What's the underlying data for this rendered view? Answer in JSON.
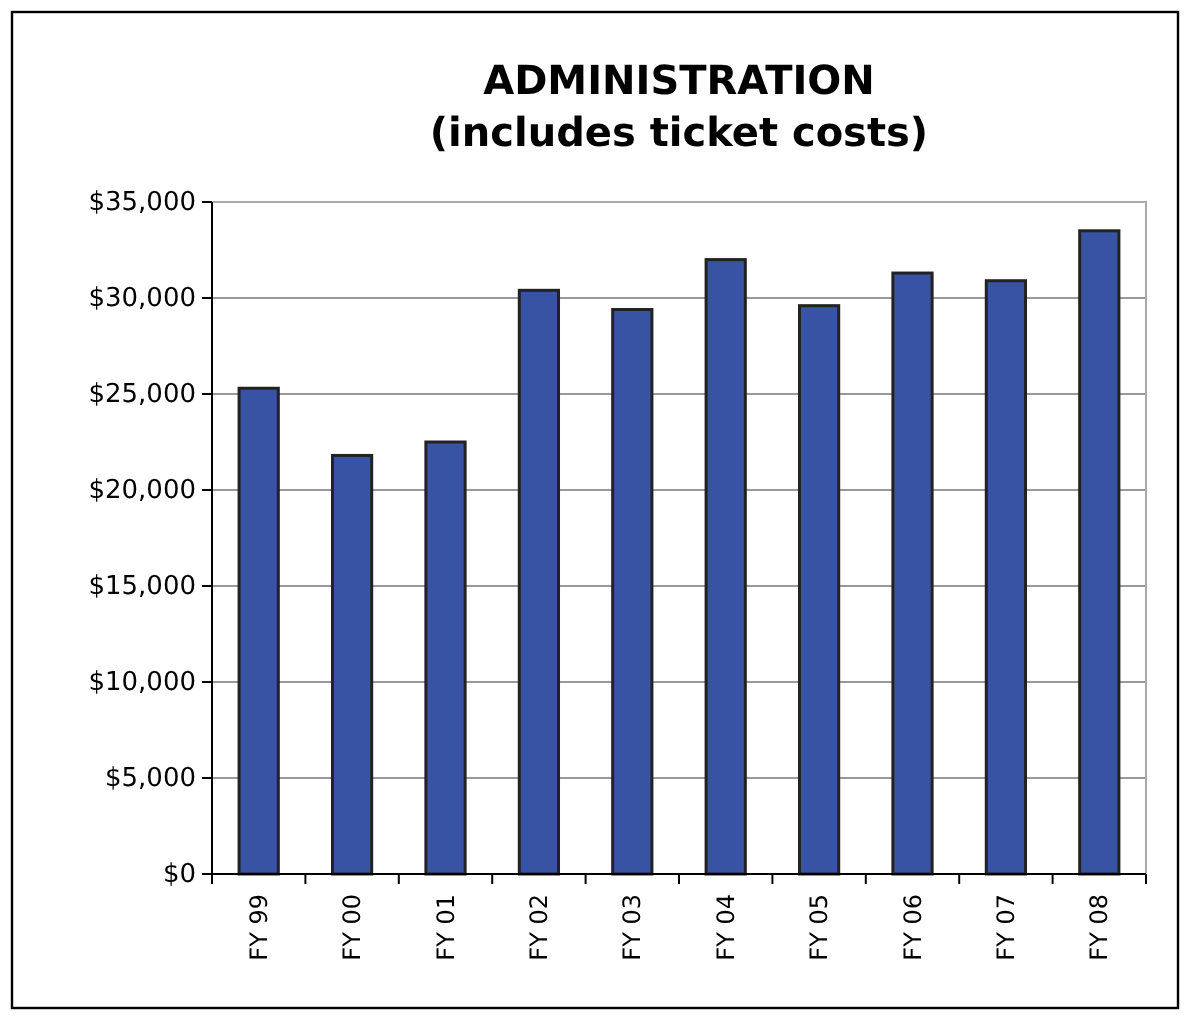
{
  "chart_data": {
    "type": "bar",
    "title": "ADMINISTRATION\n(includes ticket costs)",
    "categories": [
      "FY 99",
      "FY 00",
      "FY 01",
      "FY 02",
      "FY 03",
      "FY 04",
      "FY 05",
      "FY 06",
      "FY 07",
      "FY 08"
    ],
    "values": [
      25300,
      21800,
      22500,
      30400,
      29400,
      32000,
      29600,
      31300,
      30900,
      33500
    ],
    "color": "#3953a4",
    "ylim": [
      0,
      35000
    ],
    "yticks": [
      {
        "value": 0,
        "label": "$0"
      },
      {
        "value": 5000,
        "label": "$5,000"
      },
      {
        "value": 10000,
        "label": "$10,000"
      },
      {
        "value": 15000,
        "label": "$15,000"
      },
      {
        "value": 20000,
        "label": "$20,000"
      },
      {
        "value": 25000,
        "label": "$25,000"
      },
      {
        "value": 30000,
        "label": "$30,000"
      },
      {
        "value": 35000,
        "label": "$35,000"
      }
    ],
    "grid": "y"
  }
}
